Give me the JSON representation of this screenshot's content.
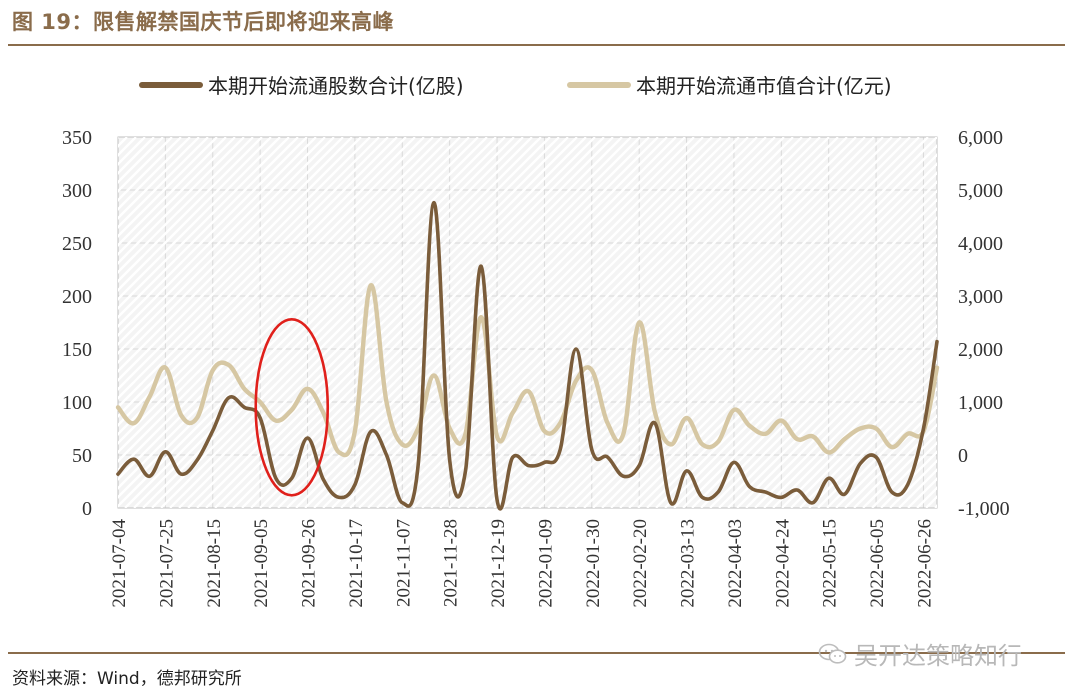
{
  "header": {
    "title": "图 19：限售解禁国庆节后即将迎来高峰"
  },
  "footer": {
    "source": "资料来源：Wind，德邦研究所",
    "watermark": "吴开达策略知行"
  },
  "icons": {
    "watermark_icon": "wechat-icon"
  },
  "colors": {
    "series_dark": "#7a5c3a",
    "series_light": "#d6c7a3",
    "highlight_ellipse": "#e0201b",
    "grid": "#d9d9d9",
    "accent": "#8a6c4b"
  },
  "chart_data": {
    "type": "line",
    "legend_placement": "top",
    "grid": true,
    "left_axis": {
      "ylim": [
        0,
        350
      ],
      "ticks": [
        "0",
        "50",
        "100",
        "150",
        "200",
        "250",
        "300",
        "350"
      ]
    },
    "right_axis": {
      "ylim": [
        -1000,
        6000
      ],
      "ticks": [
        "-1,000",
        "0",
        "1,000",
        "2,000",
        "3,000",
        "4,000",
        "5,000",
        "6,000"
      ]
    },
    "x_tick_labels": [
      "2021-07-04",
      "2021-07-25",
      "2021-08-15",
      "2021-09-05",
      "2021-09-26",
      "2021-10-17",
      "2021-11-07",
      "2021-11-28",
      "2021-12-19",
      "2022-01-09",
      "2022-01-30",
      "2022-02-20",
      "2022-03-13",
      "2022-04-03",
      "2022-04-24",
      "2022-05-15",
      "2022-06-05",
      "2022-06-26"
    ],
    "x_range": [
      "2021-07-04",
      "2022-07-02"
    ],
    "annotation": {
      "shape": "ellipse",
      "x_center": "2021-09-19",
      "y_center": 95
    },
    "series": [
      {
        "name": "本期开始流通股数合计(亿股)",
        "axis": "left",
        "points": [
          [
            "2021-07-04",
            32
          ],
          [
            "2021-07-11",
            46
          ],
          [
            "2021-07-18",
            30
          ],
          [
            "2021-07-25",
            53
          ],
          [
            "2021-08-01",
            32
          ],
          [
            "2021-08-08",
            45
          ],
          [
            "2021-08-15",
            73
          ],
          [
            "2021-08-22",
            104
          ],
          [
            "2021-08-29",
            95
          ],
          [
            "2021-09-05",
            85
          ],
          [
            "2021-09-12",
            28
          ],
          [
            "2021-09-19",
            28
          ],
          [
            "2021-09-26",
            66
          ],
          [
            "2021-10-03",
            27
          ],
          [
            "2021-10-10",
            10
          ],
          [
            "2021-10-17",
            22
          ],
          [
            "2021-10-24",
            72
          ],
          [
            "2021-10-31",
            50
          ],
          [
            "2021-11-07",
            5
          ],
          [
            "2021-11-14",
            40
          ],
          [
            "2021-11-21",
            288
          ],
          [
            "2021-11-28",
            45
          ],
          [
            "2021-12-05",
            35
          ],
          [
            "2021-12-12",
            228
          ],
          [
            "2021-12-19",
            8
          ],
          [
            "2021-12-26",
            48
          ],
          [
            "2022-01-02",
            40
          ],
          [
            "2022-01-09",
            43
          ],
          [
            "2022-01-16",
            55
          ],
          [
            "2022-01-23",
            150
          ],
          [
            "2022-01-30",
            55
          ],
          [
            "2022-02-06",
            48
          ],
          [
            "2022-02-13",
            30
          ],
          [
            "2022-02-20",
            40
          ],
          [
            "2022-02-27",
            80
          ],
          [
            "2022-03-06",
            5
          ],
          [
            "2022-03-13",
            35
          ],
          [
            "2022-03-20",
            10
          ],
          [
            "2022-03-27",
            15
          ],
          [
            "2022-04-03",
            43
          ],
          [
            "2022-04-10",
            20
          ],
          [
            "2022-04-17",
            15
          ],
          [
            "2022-04-24",
            10
          ],
          [
            "2022-05-01",
            17
          ],
          [
            "2022-05-08",
            5
          ],
          [
            "2022-05-15",
            28
          ],
          [
            "2022-05-22",
            13
          ],
          [
            "2022-05-29",
            42
          ],
          [
            "2022-06-05",
            48
          ],
          [
            "2022-06-12",
            15
          ],
          [
            "2022-06-19",
            22
          ],
          [
            "2022-06-26",
            75
          ],
          [
            "2022-07-02",
            157
          ]
        ]
      },
      {
        "name": "本期开始流通市值合计(亿元)",
        "axis": "right",
        "points": [
          [
            "2021-07-04",
            900
          ],
          [
            "2021-07-11",
            600
          ],
          [
            "2021-07-18",
            1100
          ],
          [
            "2021-07-25",
            1650
          ],
          [
            "2021-08-01",
            750
          ],
          [
            "2021-08-08",
            700
          ],
          [
            "2021-08-15",
            1600
          ],
          [
            "2021-08-22",
            1700
          ],
          [
            "2021-08-29",
            1250
          ],
          [
            "2021-09-05",
            1000
          ],
          [
            "2021-09-12",
            650
          ],
          [
            "2021-09-19",
            850
          ],
          [
            "2021-09-26",
            1250
          ],
          [
            "2021-10-03",
            800
          ],
          [
            "2021-10-10",
            50
          ],
          [
            "2021-10-17",
            450
          ],
          [
            "2021-10-24",
            3200
          ],
          [
            "2021-10-31",
            1000
          ],
          [
            "2021-11-07",
            200
          ],
          [
            "2021-11-14",
            500
          ],
          [
            "2021-11-21",
            1500
          ],
          [
            "2021-11-28",
            500
          ],
          [
            "2021-12-05",
            400
          ],
          [
            "2021-12-12",
            2600
          ],
          [
            "2021-12-19",
            350
          ],
          [
            "2021-12-26",
            800
          ],
          [
            "2022-01-02",
            1200
          ],
          [
            "2022-01-09",
            450
          ],
          [
            "2022-01-16",
            600
          ],
          [
            "2022-01-23",
            1400
          ],
          [
            "2022-01-30",
            1600
          ],
          [
            "2022-02-06",
            600
          ],
          [
            "2022-02-13",
            400
          ],
          [
            "2022-02-20",
            2500
          ],
          [
            "2022-02-27",
            800
          ],
          [
            "2022-03-06",
            200
          ],
          [
            "2022-03-13",
            700
          ],
          [
            "2022-03-20",
            200
          ],
          [
            "2022-03-27",
            250
          ],
          [
            "2022-04-03",
            850
          ],
          [
            "2022-04-10",
            550
          ],
          [
            "2022-04-17",
            400
          ],
          [
            "2022-04-24",
            650
          ],
          [
            "2022-05-01",
            300
          ],
          [
            "2022-05-08",
            350
          ],
          [
            "2022-05-15",
            50
          ],
          [
            "2022-05-22",
            300
          ],
          [
            "2022-05-29",
            500
          ],
          [
            "2022-06-05",
            500
          ],
          [
            "2022-06-12",
            150
          ],
          [
            "2022-06-19",
            400
          ],
          [
            "2022-06-26",
            450
          ],
          [
            "2022-07-02",
            1650
          ]
        ]
      }
    ]
  }
}
